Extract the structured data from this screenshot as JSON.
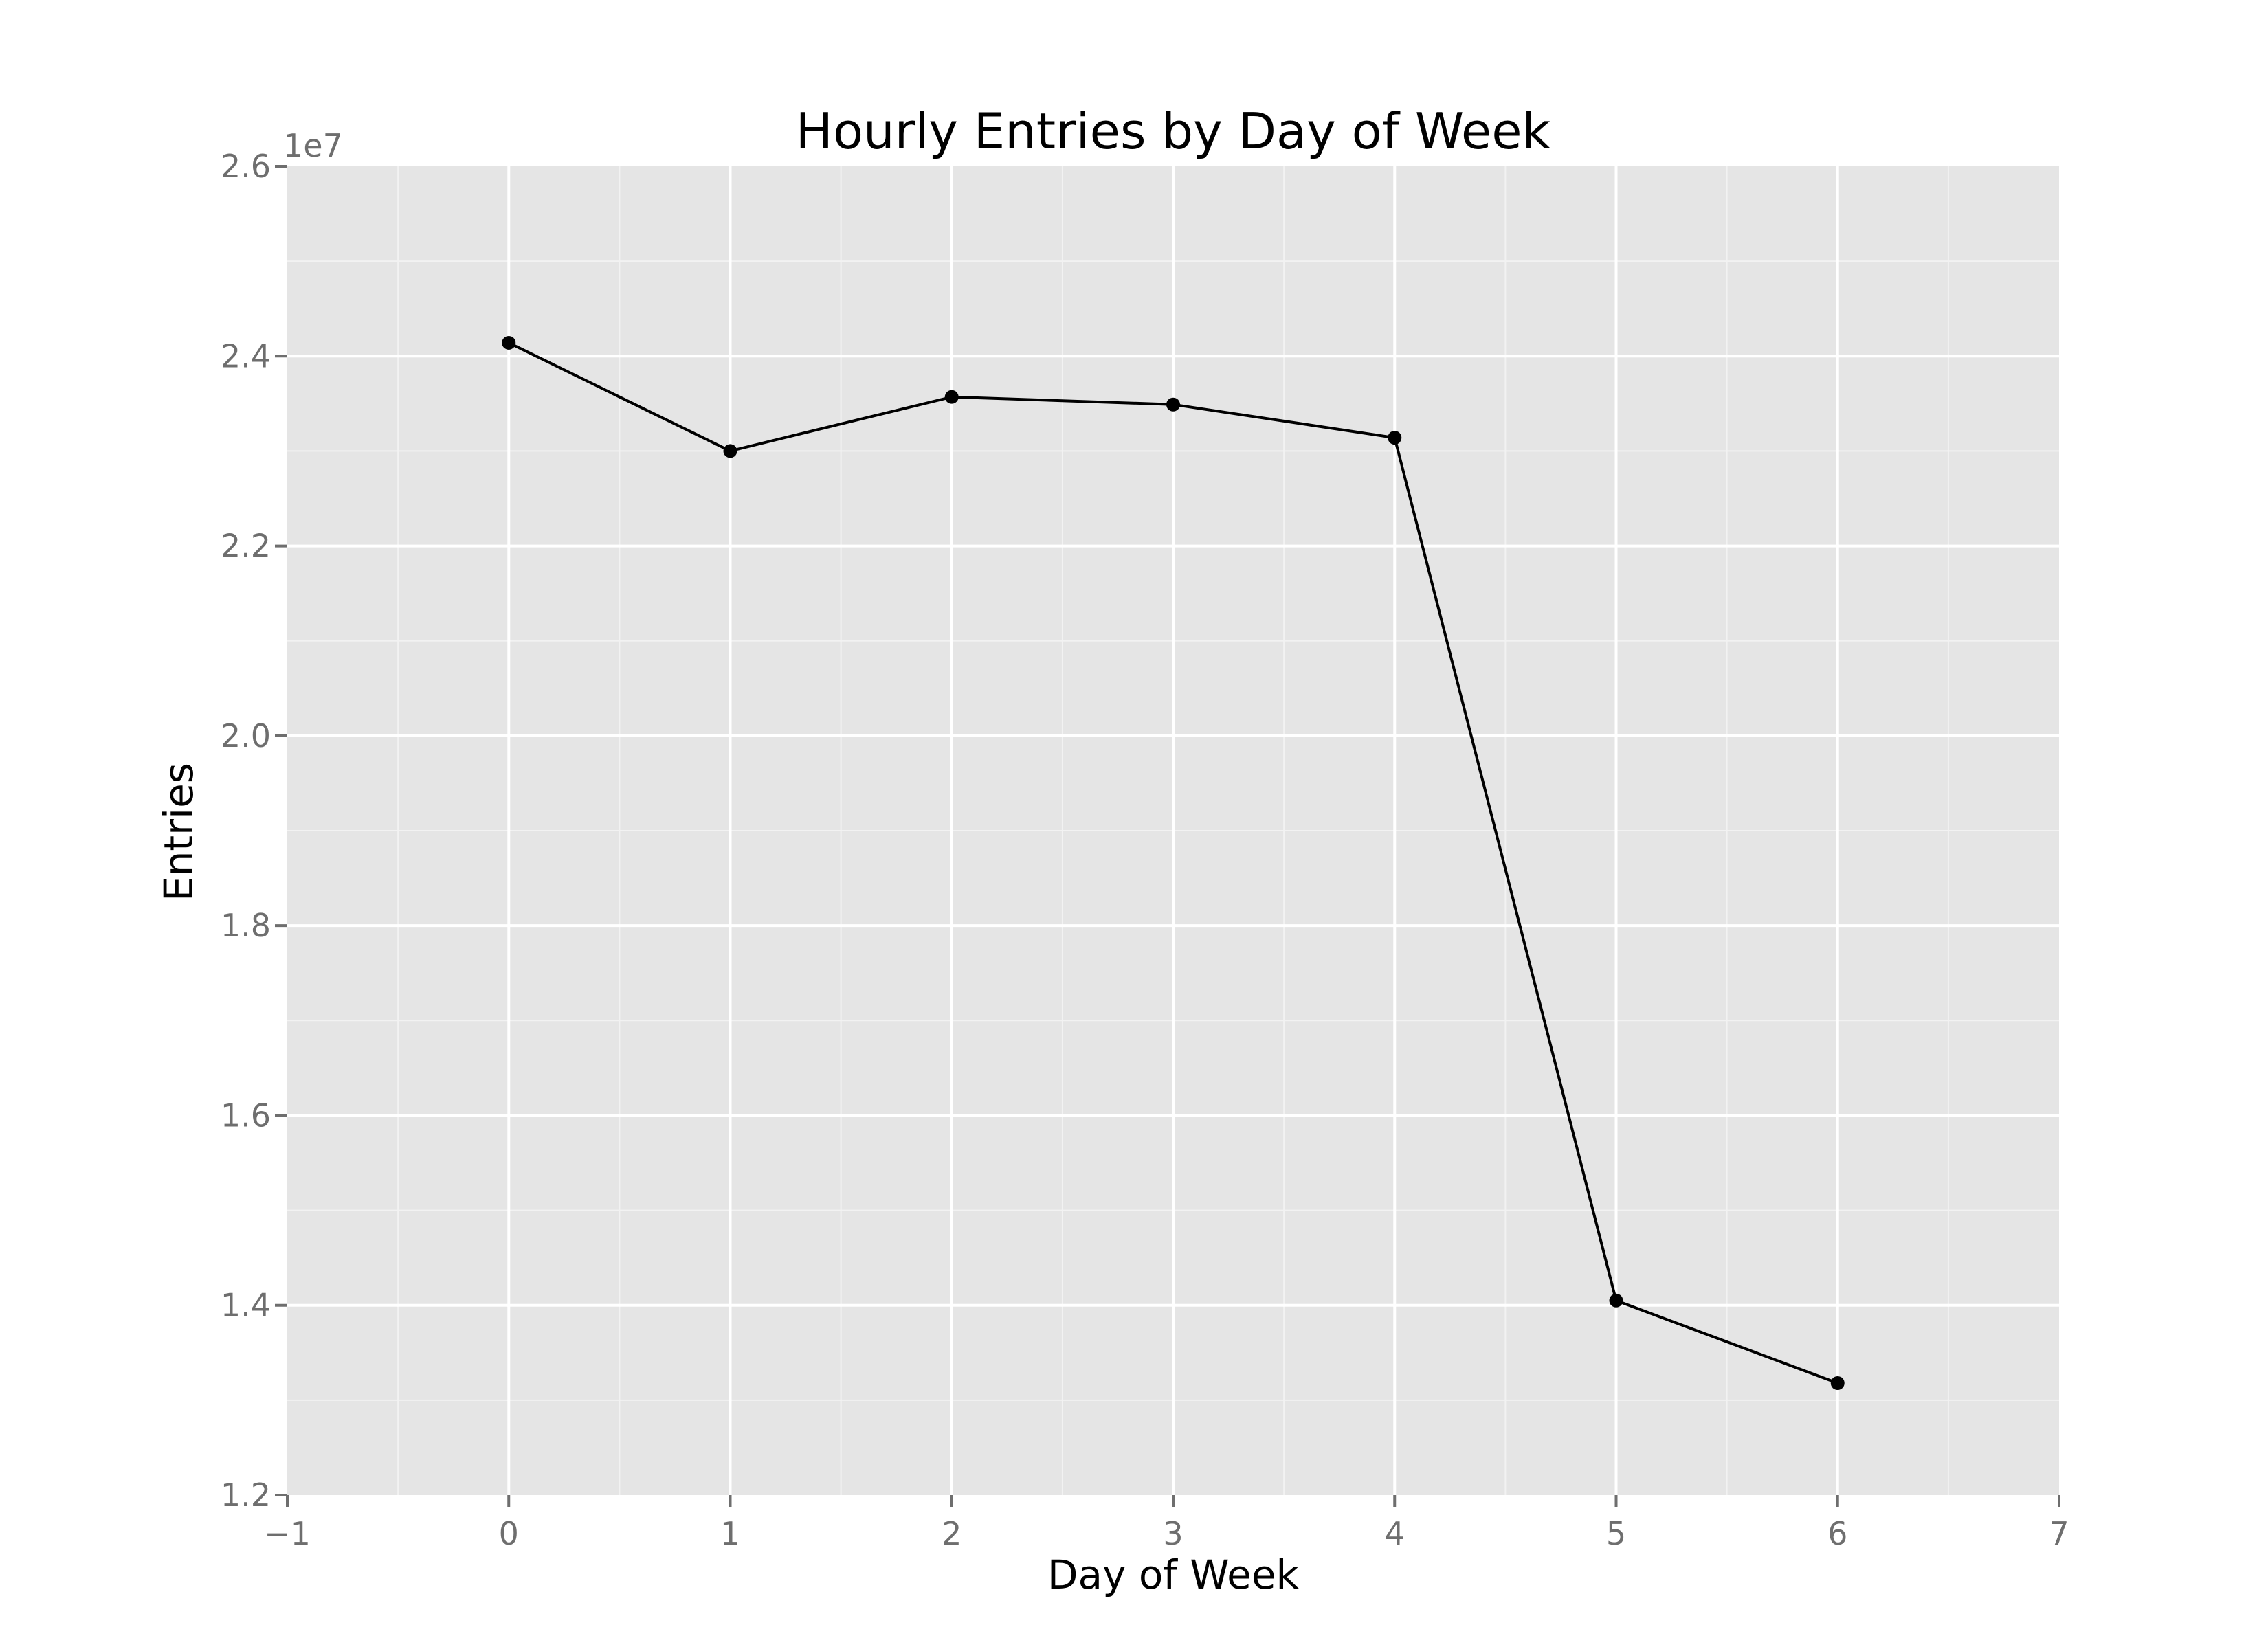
{
  "chart_data": {
    "type": "line",
    "title": "Hourly Entries by Day of Week",
    "xlabel": "Day of Week",
    "ylabel": "Entries",
    "xlim": [
      -1,
      7
    ],
    "ylim": [
      1.2,
      2.6
    ],
    "y_offset_label": "1e7",
    "x_ticks": [
      -1,
      0,
      1,
      2,
      3,
      4,
      5,
      6,
      7
    ],
    "x_tick_labels": [
      "−1",
      "0",
      "1",
      "2",
      "3",
      "4",
      "5",
      "6",
      "7"
    ],
    "y_ticks": [
      1.2,
      1.4,
      1.6,
      1.8,
      2.0,
      2.2,
      2.4,
      2.6
    ],
    "y_tick_labels": [
      "1.2",
      "1.4",
      "1.6",
      "1.8",
      "2.0",
      "2.2",
      "2.4",
      "2.6"
    ],
    "grid": true,
    "series": [
      {
        "x": [
          0,
          1,
          2,
          3,
          4,
          5,
          6
        ],
        "values": [
          2.414,
          2.3,
          2.357,
          2.349,
          2.314,
          1.405,
          1.318
        ]
      }
    ],
    "colors": {
      "panel": "#e5e5e5",
      "grid_major": "#ffffff",
      "grid_minor": "#f2f2f2",
      "line": "#000000",
      "tick": "#6e6e6e"
    }
  }
}
